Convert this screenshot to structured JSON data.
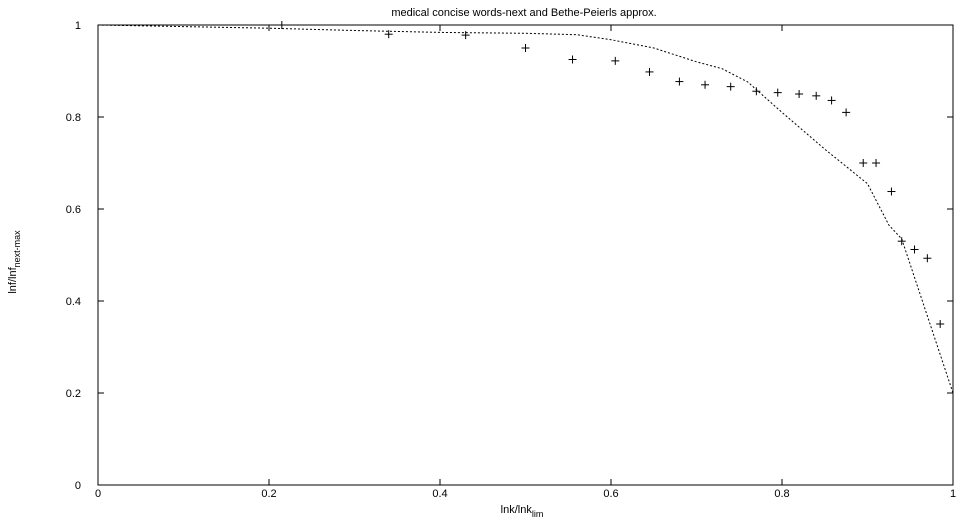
{
  "chart_data": {
    "type": "scatter",
    "title": "medical concise words-next and Bethe-Peierls approx.",
    "xlabel": {
      "main": "lnk/lnk",
      "sub": "lim"
    },
    "ylabel": {
      "main": "lnf/lnf",
      "sub": "next-max"
    },
    "xlim": [
      0,
      1
    ],
    "ylim": [
      0,
      1
    ],
    "xticks": [
      "0",
      "0.2",
      "0.4",
      "0.6",
      "0.8",
      "1"
    ],
    "yticks": [
      "0",
      "0.2",
      "0.4",
      "0.6",
      "0.8",
      "1"
    ],
    "grid": false,
    "legend": "none",
    "series": [
      {
        "style": "points",
        "marker": "plus",
        "color": "#000000",
        "points": [
          [
            0.215,
            1.0
          ],
          [
            0.34,
            0.98
          ],
          [
            0.43,
            0.978
          ],
          [
            0.5,
            0.95
          ],
          [
            0.555,
            0.925
          ],
          [
            0.605,
            0.922
          ],
          [
            0.645,
            0.898
          ],
          [
            0.68,
            0.877
          ],
          [
            0.71,
            0.87
          ],
          [
            0.74,
            0.866
          ],
          [
            0.77,
            0.856
          ],
          [
            0.795,
            0.853
          ],
          [
            0.82,
            0.85
          ],
          [
            0.84,
            0.846
          ],
          [
            0.858,
            0.836
          ],
          [
            0.875,
            0.81
          ],
          [
            0.895,
            0.7
          ],
          [
            0.91,
            0.7
          ],
          [
            0.928,
            0.638
          ],
          [
            0.94,
            0.53
          ],
          [
            0.955,
            0.512
          ],
          [
            0.97,
            0.493
          ],
          [
            0.985,
            0.35
          ]
        ]
      },
      {
        "style": "dashed-line",
        "color": "#000000",
        "points": [
          [
            0.0,
            1.0
          ],
          [
            0.2,
            0.993
          ],
          [
            0.3,
            0.988
          ],
          [
            0.4,
            0.984
          ],
          [
            0.5,
            0.982
          ],
          [
            0.56,
            0.979
          ],
          [
            0.6,
            0.968
          ],
          [
            0.65,
            0.95
          ],
          [
            0.7,
            0.92
          ],
          [
            0.73,
            0.905
          ],
          [
            0.76,
            0.876
          ],
          [
            0.8,
            0.81
          ],
          [
            0.85,
            0.73
          ],
          [
            0.9,
            0.655
          ],
          [
            0.925,
            0.565
          ],
          [
            0.94,
            0.535
          ],
          [
            1.0,
            0.2
          ]
        ]
      }
    ]
  }
}
